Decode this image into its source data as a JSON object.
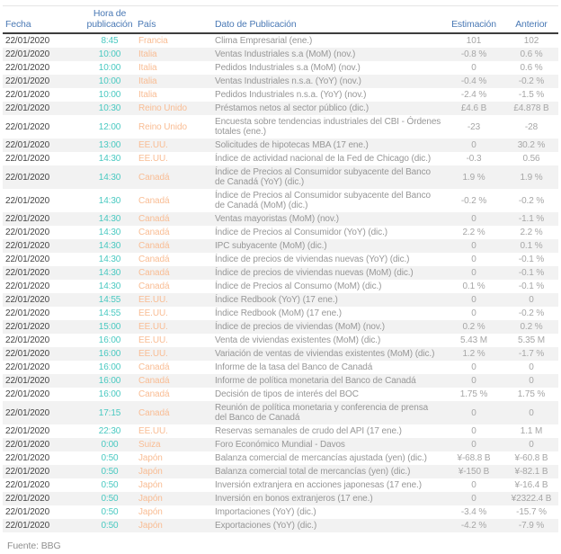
{
  "chart_data": {
    "type": "table",
    "title": "",
    "columns": [
      {
        "key": "fecha",
        "label": "Fecha"
      },
      {
        "key": "hora",
        "label": "Hora de publicación"
      },
      {
        "key": "pais",
        "label": "País"
      },
      {
        "key": "dato",
        "label": "Dato de Publicación"
      },
      {
        "key": "estimacion",
        "label": "Estimación"
      },
      {
        "key": "anterior",
        "label": "Anterior"
      }
    ],
    "rows": [
      {
        "fecha": "22/01/2020",
        "hora": "8:45",
        "pais": "Francia",
        "dato": "Clima Empresarial (ene.)",
        "estimacion": "101",
        "anterior": "102"
      },
      {
        "fecha": "22/01/2020",
        "hora": "10:00",
        "pais": "Italia",
        "dato": "Ventas Industriales s.a (MoM) (nov.)",
        "estimacion": "-0.8 %",
        "anterior": "0.6 %"
      },
      {
        "fecha": "22/01/2020",
        "hora": "10:00",
        "pais": "Italia",
        "dato": "Pedidos Industriales s.a (MoM) (nov.)",
        "estimacion": "0",
        "anterior": "0.6 %"
      },
      {
        "fecha": "22/01/2020",
        "hora": "10:00",
        "pais": "Italia",
        "dato": "Ventas Industriales n.s.a. (YoY) (nov.)",
        "estimacion": "-0.4 %",
        "anterior": "-0.2 %"
      },
      {
        "fecha": "22/01/2020",
        "hora": "10:00",
        "pais": "Italia",
        "dato": "Pedidos Industriales n.s.a. (YoY) (nov.)",
        "estimacion": "-2.4 %",
        "anterior": "-1.5 %"
      },
      {
        "fecha": "22/01/2020",
        "hora": "10:30",
        "pais": "Reino Unido",
        "dato": "Préstamos netos al sector público (dic.)",
        "estimacion": "£4.6 B",
        "anterior": "£4.878 B"
      },
      {
        "fecha": "22/01/2020",
        "hora": "12:00",
        "pais": "Reino Unido",
        "dato": "Encuesta sobre tendencias industriales del CBI - Órdenes totales (ene.)",
        "estimacion": "-23",
        "anterior": "-28"
      },
      {
        "fecha": "22/01/2020",
        "hora": "13:00",
        "pais": "EE.UU.",
        "dato": "Solicitudes de hipotecas MBA (17 ene.)",
        "estimacion": "0",
        "anterior": "30.2 %"
      },
      {
        "fecha": "22/01/2020",
        "hora": "14:30",
        "pais": "EE.UU.",
        "dato": "Índice de actividad nacional de la Fed de Chicago (dic.)",
        "estimacion": "-0.3",
        "anterior": "0.56"
      },
      {
        "fecha": "22/01/2020",
        "hora": "14:30",
        "pais": "Canadá",
        "dato": "Índice de Precios al Consumidor subyacente del Banco de Canadá (YoY) (dic.)",
        "estimacion": "1.9 %",
        "anterior": "1.9 %"
      },
      {
        "fecha": "22/01/2020",
        "hora": "14:30",
        "pais": "Canadá",
        "dato": "Índice de Precios al Consumidor subyacente del Banco de Canadá (MoM) (dic.)",
        "estimacion": "-0.2 %",
        "anterior": "-0.2 %"
      },
      {
        "fecha": "22/01/2020",
        "hora": "14:30",
        "pais": "Canadá",
        "dato": "Ventas mayoristas (MoM) (nov.)",
        "estimacion": "0",
        "anterior": "-1.1 %"
      },
      {
        "fecha": "22/01/2020",
        "hora": "14:30",
        "pais": "Canadá",
        "dato": "Índice de Precios al Consumidor (YoY) (dic.)",
        "estimacion": "2.2 %",
        "anterior": "2.2 %"
      },
      {
        "fecha": "22/01/2020",
        "hora": "14:30",
        "pais": "Canadá",
        "dato": "IPC subyacente (MoM) (dic.)",
        "estimacion": "0",
        "anterior": "0.1 %"
      },
      {
        "fecha": "22/01/2020",
        "hora": "14:30",
        "pais": "Canadá",
        "dato": "Índice de precios de viviendas nuevas (YoY) (dic.)",
        "estimacion": "0",
        "anterior": "-0.1 %"
      },
      {
        "fecha": "22/01/2020",
        "hora": "14:30",
        "pais": "Canadá",
        "dato": "Índice de precios de viviendas nuevas (MoM) (dic.)",
        "estimacion": "0",
        "anterior": "-0.1 %"
      },
      {
        "fecha": "22/01/2020",
        "hora": "14:30",
        "pais": "Canadá",
        "dato": "Índice de Precios al Consumo (MoM) (dic.)",
        "estimacion": "0.1 %",
        "anterior": "-0.1 %"
      },
      {
        "fecha": "22/01/2020",
        "hora": "14:55",
        "pais": "EE.UU.",
        "dato": "Índice Redbook (YoY) (17 ene.)",
        "estimacion": "0",
        "anterior": "0"
      },
      {
        "fecha": "22/01/2020",
        "hora": "14:55",
        "pais": "EE.UU.",
        "dato": "Índice Redbook (MoM) (17 ene.)",
        "estimacion": "0",
        "anterior": "-0.2 %"
      },
      {
        "fecha": "22/01/2020",
        "hora": "15:00",
        "pais": "EE.UU.",
        "dato": "Índice de precios de viviendas (MoM) (nov.)",
        "estimacion": "0.2 %",
        "anterior": "0.2 %"
      },
      {
        "fecha": "22/01/2020",
        "hora": "16:00",
        "pais": "EE.UU.",
        "dato": "Venta de viviendas existentes (MoM) (dic.)",
        "estimacion": "5.43 M",
        "anterior": "5.35 M"
      },
      {
        "fecha": "22/01/2020",
        "hora": "16:00",
        "pais": "EE.UU.",
        "dato": "Variación de ventas de viviendas existentes (MoM) (dic.)",
        "estimacion": "1.2 %",
        "anterior": "-1.7 %"
      },
      {
        "fecha": "22/01/2020",
        "hora": "16:00",
        "pais": "Canadá",
        "dato": "Informe de la tasa del Banco de Canadá",
        "estimacion": "0",
        "anterior": "0"
      },
      {
        "fecha": "22/01/2020",
        "hora": "16:00",
        "pais": "Canadá",
        "dato": "Informe de política monetaria del Banco de Canadá",
        "estimacion": "0",
        "anterior": "0"
      },
      {
        "fecha": "22/01/2020",
        "hora": "16:00",
        "pais": "Canadá",
        "dato": "Decisión de tipos de interés del BOC",
        "estimacion": "1.75 %",
        "anterior": "1.75 %"
      },
      {
        "fecha": "22/01/2020",
        "hora": "17:15",
        "pais": "Canadá",
        "dato": "Reunión de política monetaria y conferencia de prensa del Banco de Canadá",
        "estimacion": "0",
        "anterior": "0"
      },
      {
        "fecha": "22/01/2020",
        "hora": "22:30",
        "pais": "EE.UU.",
        "dato": "Reservas semanales de crudo del API (17 ene.)",
        "estimacion": "0",
        "anterior": "1.1 M"
      },
      {
        "fecha": "22/01/2020",
        "hora": "0:00",
        "pais": "Suiza",
        "dato": "Foro Económico Mundial - Davos",
        "estimacion": "0",
        "anterior": "0"
      },
      {
        "fecha": "22/01/2020",
        "hora": "0:50",
        "pais": "Japón",
        "dato": "Balanza comercial de mercancías ajustada (yen) (dic.)",
        "estimacion": "¥-68.8 B",
        "anterior": "¥-60.8 B"
      },
      {
        "fecha": "22/01/2020",
        "hora": "0:50",
        "pais": "Japón",
        "dato": "Balanza comercial total de mercancías (yen) (dic.)",
        "estimacion": "¥-150 B",
        "anterior": "¥-82.1 B"
      },
      {
        "fecha": "22/01/2020",
        "hora": "0:50",
        "pais": "Japón",
        "dato": "Inversión extranjera en acciones japonesas (17 ene.)",
        "estimacion": "0",
        "anterior": "¥-16.4 B"
      },
      {
        "fecha": "22/01/2020",
        "hora": "0:50",
        "pais": "Japón",
        "dato": "Inversión en bonos extranjeros (17 ene.)",
        "estimacion": "0",
        "anterior": "¥2322.4 B"
      },
      {
        "fecha": "22/01/2020",
        "hora": "0:50",
        "pais": "Japón",
        "dato": "Importaciones (YoY) (dic.)",
        "estimacion": "-3.4 %",
        "anterior": "-15.7 %"
      },
      {
        "fecha": "22/01/2020",
        "hora": "0:50",
        "pais": "Japón",
        "dato": "Exportaciones (YoY) (dic.)",
        "estimacion": "-4.2 %",
        "anterior": "-7.9 %"
      }
    ]
  },
  "footer": {
    "source_label": "Fuente: BBG"
  },
  "colors": {
    "header_text": "#4a79b5",
    "header_rule": "#3d3d3d",
    "top_rule": "#e4e4e4",
    "date_text": "#454545",
    "time_text": "#49c9c1",
    "country_text": "#f9bd94",
    "data_text": "#979797",
    "value_text": "#a6a6a6",
    "row_alt_bg": "#f2f2f2",
    "source_text": "#8f8f8f"
  }
}
